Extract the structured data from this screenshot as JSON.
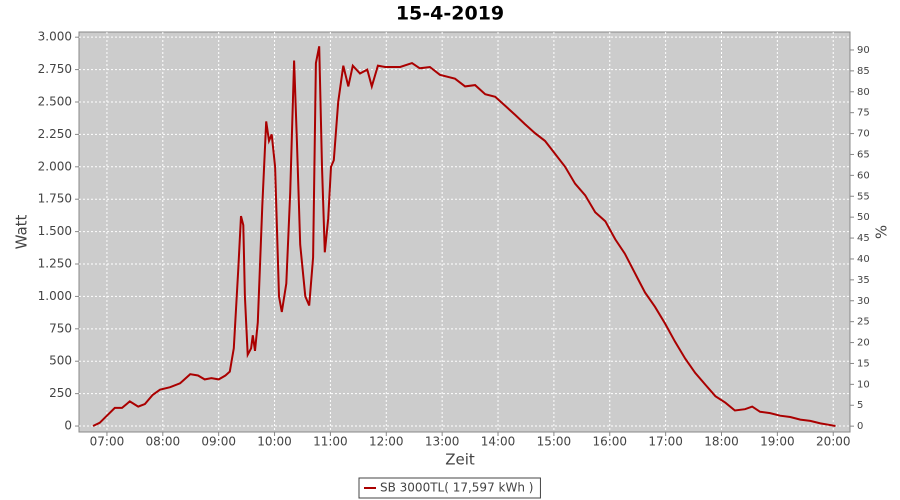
{
  "chart_data": {
    "type": "line",
    "title": "15-4-2019",
    "x_label": "Zeit",
    "y_label": "Watt",
    "y2_label": "%",
    "x": [
      6.75,
      6.87,
      7.0,
      7.14,
      7.27,
      7.41,
      7.56,
      7.68,
      7.82,
      7.95,
      8.13,
      8.31,
      8.49,
      8.63,
      8.75,
      8.87,
      9.0,
      9.12,
      9.2,
      9.27,
      9.35,
      9.4,
      9.44,
      9.47,
      9.52,
      9.58,
      9.61,
      9.65,
      9.7,
      9.78,
      9.85,
      9.9,
      9.95,
      10.01,
      10.08,
      10.13,
      10.21,
      10.28,
      10.35,
      10.4,
      10.46,
      10.55,
      10.62,
      10.69,
      10.74,
      10.8,
      10.85,
      10.9,
      10.96,
      11.01,
      11.06,
      11.14,
      11.23,
      11.32,
      11.4,
      11.53,
      11.66,
      11.74,
      11.85,
      11.98,
      12.25,
      12.46,
      12.6,
      12.78,
      12.96,
      13.23,
      13.41,
      13.59,
      13.77,
      13.95,
      14.13,
      14.31,
      14.48,
      14.66,
      14.84,
      15.02,
      15.2,
      15.38,
      15.56,
      15.74,
      15.92,
      16.1,
      16.27,
      16.45,
      16.63,
      16.81,
      16.99,
      17.17,
      17.35,
      17.53,
      17.71,
      17.89,
      18.07,
      18.24,
      18.42,
      18.55,
      18.69,
      18.87,
      19.05,
      19.23,
      19.41,
      19.59,
      19.77,
      19.91,
      20.04
    ],
    "series": [
      {
        "name": "SB 3000TL( 17,597 kWh )",
        "color": "#aa0000",
        "values": [
          0,
          25,
          80,
          140,
          140,
          190,
          150,
          170,
          240,
          280,
          300,
          330,
          400,
          390,
          360,
          370,
          360,
          390,
          420,
          600,
          1200,
          1620,
          1550,
          1000,
          550,
          600,
          700,
          580,
          800,
          1700,
          2350,
          2200,
          2250,
          2000,
          1000,
          880,
          1100,
          1800,
          2820,
          2200,
          1400,
          1000,
          930,
          1300,
          2800,
          2930,
          2000,
          1340,
          1600,
          2000,
          2050,
          2500,
          2780,
          2620,
          2780,
          2720,
          2750,
          2620,
          2780,
          2770,
          2770,
          2800,
          2760,
          2770,
          2710,
          2680,
          2620,
          2630,
          2560,
          2540,
          2470,
          2400,
          2330,
          2260,
          2200,
          2100,
          2000,
          1870,
          1780,
          1650,
          1580,
          1440,
          1330,
          1180,
          1030,
          920,
          790,
          650,
          520,
          410,
          320,
          230,
          180,
          120,
          130,
          150,
          110,
          100,
          80,
          70,
          50,
          40,
          20,
          10,
          0
        ]
      }
    ],
    "xlim": [
      6.5,
      20.3
    ],
    "xticks": [
      {
        "value": 7,
        "label": "07:00"
      },
      {
        "value": 8,
        "label": "08:00"
      },
      {
        "value": 9,
        "label": "09:00"
      },
      {
        "value": 10,
        "label": "10:00"
      },
      {
        "value": 11,
        "label": "11:00"
      },
      {
        "value": 12,
        "label": "12:00"
      },
      {
        "value": 13,
        "label": "13:00"
      },
      {
        "value": 14,
        "label": "14:00"
      },
      {
        "value": 15,
        "label": "15:00"
      },
      {
        "value": 16,
        "label": "16:00"
      },
      {
        "value": 17,
        "label": "17:00"
      },
      {
        "value": 18,
        "label": "18:00"
      },
      {
        "value": 19,
        "label": "19:00"
      },
      {
        "value": 20,
        "label": "20:00"
      }
    ],
    "ylim": [
      -46,
      3040
    ],
    "yticks": [
      0,
      250,
      500,
      750,
      {
        "value": 1000,
        "label": "1.000"
      },
      {
        "value": 1250,
        "label": "1.250"
      },
      {
        "value": 1500,
        "label": "1.500"
      },
      {
        "value": 1750,
        "label": "1.750"
      },
      {
        "value": 2000,
        "label": "2.000"
      },
      {
        "value": 2250,
        "label": "2.250"
      },
      {
        "value": 2500,
        "label": "2.500"
      },
      {
        "value": 2750,
        "label": "2.750"
      },
      {
        "value": 3000,
        "label": "3.000"
      }
    ],
    "y2lim": [
      -1.4,
      94.3
    ],
    "y2ticks": [
      0,
      5,
      10,
      15,
      20,
      25,
      30,
      35,
      40,
      45,
      50,
      55,
      60,
      65,
      70,
      75,
      80,
      85,
      90
    ],
    "grid": true,
    "legend": "bottom"
  }
}
